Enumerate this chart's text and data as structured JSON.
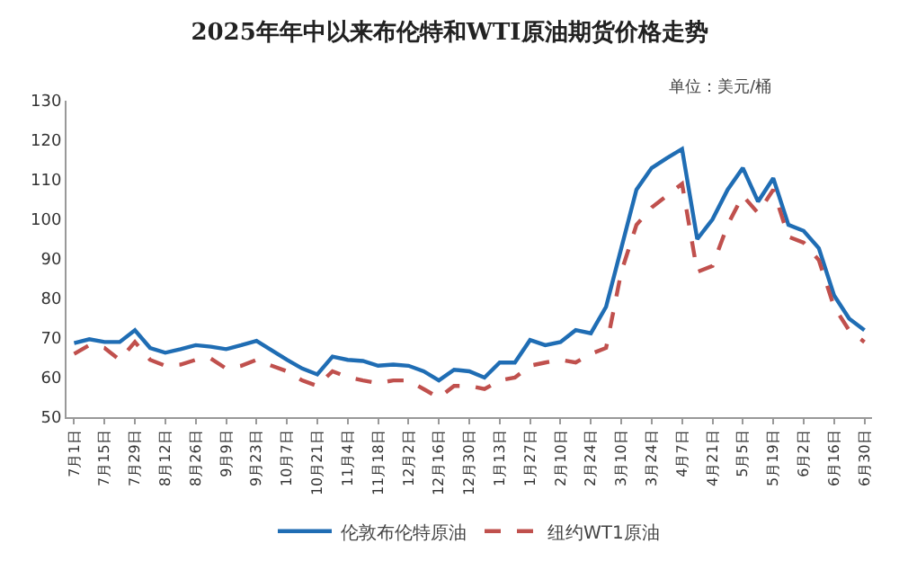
{
  "chart_data": {
    "type": "line",
    "title": "2025年年中以来布伦特和WTI原油期货价格走势",
    "annotations": [
      "单位：美元/桶"
    ],
    "categories": [
      "7月1日",
      null,
      "7月15日",
      null,
      "7月29日",
      null,
      "8月12日",
      null,
      "8月26日",
      null,
      "9月9日",
      null,
      "9月23日",
      null,
      "10月7日",
      null,
      "10月21日",
      null,
      "11月4日",
      null,
      "11月18日",
      null,
      "12月2日",
      null,
      "12月16日",
      null,
      "12月30日",
      null,
      "1月13日",
      null,
      "1月27日",
      null,
      "2月10日",
      null,
      "2月24日",
      null,
      "3月10日",
      null,
      "3月24日",
      null,
      "4月7日",
      null,
      "4月21日",
      null,
      "5月5日",
      null,
      "5月19日",
      null,
      "6月2日",
      null,
      "6月16日",
      null,
      "6月30日"
    ],
    "series": [
      {
        "name": "伦敦布伦特原油",
        "color": "#1f6db4",
        "line_style": "solid",
        "values": [
          68.7,
          69.7,
          69,
          69,
          72,
          67.5,
          66.3,
          67.2,
          68.2,
          67.8,
          67.2,
          68.2,
          69.3,
          66.9,
          64.5,
          62.3,
          60.8,
          65.3,
          64.5,
          64.2,
          63,
          63.3,
          63,
          61.6,
          59.3,
          62,
          61.6,
          60,
          63.8,
          63.8,
          69.5,
          68.2,
          69,
          72,
          71.2,
          77.9,
          92.7,
          107.5,
          113,
          115.5,
          117.8,
          95,
          100,
          107.5,
          113,
          104.5,
          110.4,
          98.6,
          97.1,
          92.7,
          80.8,
          74.9,
          72
        ]
      },
      {
        "name": "纽约WT1原油",
        "color": "#c0504d",
        "line_style": "dashed",
        "values": [
          66,
          68.2,
          67.5,
          64.5,
          69,
          64.5,
          63,
          63.3,
          64.5,
          64.8,
          62.3,
          63,
          64.5,
          63,
          61.6,
          59.3,
          57.9,
          61.6,
          60.1,
          59.3,
          58.6,
          59.3,
          59.3,
          57.1,
          54.9,
          57.9,
          57.9,
          57.1,
          59.3,
          60,
          63,
          63.8,
          64.5,
          63.8,
          66,
          67.5,
          86.7,
          98.6,
          103,
          106,
          109,
          86.7,
          88.2,
          98.6,
          106,
          101.6,
          107.5,
          95.6,
          94.1,
          89.7,
          77.9,
          71.9,
          69
        ]
      }
    ],
    "ylim": [
      50,
      130
    ],
    "yticks": [
      50,
      60,
      70,
      80,
      90,
      100,
      110,
      120,
      130
    ],
    "legend": "bottom",
    "marker": "none"
  }
}
